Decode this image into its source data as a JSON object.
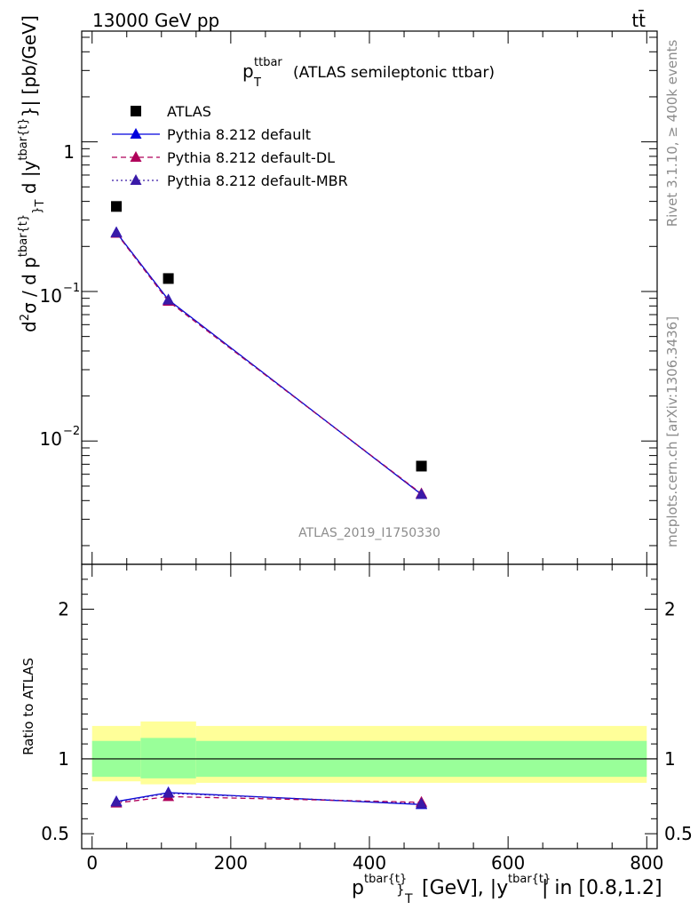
{
  "header": {
    "left": "13000 GeV pp",
    "right": "tt̄"
  },
  "side": {
    "rivet": "Rivet 3.1.10, ≥ 400k events",
    "mcplots": "mcplots.cern.ch [arXiv:1306.3436]"
  },
  "watermark": "ATLAS_2019_I1750330",
  "chart_data": [
    {
      "type": "line",
      "title": "p_T^{ttbar} (ATLAS semileptonic ttbar)",
      "title_main": "p",
      "title_sub": "T",
      "title_sup": "ttbar",
      "title_rest": "(ATLAS semileptonic ttbar)",
      "ylabel": "d²σ / d p^{tbar{t}}_T d |y^{tbar{t}}| [pb/GeV]",
      "yscale": "log",
      "ylim": [
        0.0015,
        5.5
      ],
      "xlim": [
        -15,
        815
      ],
      "ytick_labels": [
        "10^{-2}",
        "10^{-1}",
        "1"
      ],
      "ytick_values": [
        0.01,
        0.1,
        1
      ],
      "legend_position": "top-left",
      "series": [
        {
          "name": "ATLAS",
          "x": [
            35,
            110,
            475
          ],
          "y": [
            0.37,
            0.122,
            0.0068
          ],
          "color": "#000000",
          "marker": "square",
          "line": "none"
        },
        {
          "name": "Pythia 8.212 default",
          "x": [
            35,
            110,
            475
          ],
          "y": [
            0.248,
            0.088,
            0.0044
          ],
          "color": "#0000dd",
          "marker": "triangle",
          "line": "solid"
        },
        {
          "name": "Pythia 8.212 default-DL",
          "x": [
            35,
            110,
            475
          ],
          "y": [
            0.245,
            0.086,
            0.00445
          ],
          "color": "#b0005a",
          "marker": "triangle",
          "line": "dashed"
        },
        {
          "name": "Pythia 8.212 default-MBR",
          "x": [
            35,
            110,
            475
          ],
          "y": [
            0.247,
            0.0875,
            0.0044
          ],
          "color": "#3a1aa8",
          "marker": "triangle",
          "line": "dotted"
        }
      ]
    },
    {
      "type": "line",
      "ylabel": "Ratio to ATLAS",
      "xlabel": "p^{tbar{t}}_T [GeV], |y^{tbar{t}}| in [0.8,1.2]",
      "xlabel_main": "p",
      "xlabel_sub": "T",
      "xlabel_sup": "tbar{t}",
      "xlabel_rest": "[GeV], |y",
      "xlabel_sup2": "tbar{t}",
      "xlabel_end": "| in [0.8,1.2]",
      "ylim": [
        0.4,
        2.3
      ],
      "xlim": [
        -15,
        815
      ],
      "ytick_labels": [
        "0.5",
        "1",
        "2"
      ],
      "ytick_values": [
        0.5,
        1,
        2
      ],
      "xtick_labels": [
        "0",
        "200",
        "400",
        "600",
        "800"
      ],
      "xtick_values": [
        0,
        200,
        400,
        600,
        800
      ],
      "bins": [
        [
          0,
          70
        ],
        [
          70,
          150
        ],
        [
          150,
          800
        ]
      ],
      "band_inner": [
        [
          0.88,
          1.12
        ],
        [
          0.87,
          1.14
        ],
        [
          0.88,
          1.12
        ]
      ],
      "band_outer": [
        [
          0.85,
          1.22
        ],
        [
          0.83,
          1.25
        ],
        [
          0.84,
          1.22
        ]
      ],
      "band_colors": {
        "outer": "#ffff99",
        "inner": "#99ff99"
      },
      "series": [
        {
          "name": "Pythia 8.212 default",
          "x": [
            35,
            110,
            475
          ],
          "y": [
            0.715,
            0.775,
            0.695
          ],
          "color": "#0000dd",
          "marker": "triangle",
          "line": "solid"
        },
        {
          "name": "Pythia 8.212 default-DL",
          "x": [
            35,
            110,
            475
          ],
          "y": [
            0.705,
            0.748,
            0.71
          ],
          "color": "#b0005a",
          "marker": "triangle",
          "line": "dashed"
        },
        {
          "name": "Pythia 8.212 default-MBR",
          "x": [
            35,
            110,
            475
          ],
          "y": [
            0.712,
            0.77,
            0.7
          ],
          "color": "#3a1aa8",
          "marker": "triangle",
          "line": "dotted"
        }
      ]
    }
  ]
}
